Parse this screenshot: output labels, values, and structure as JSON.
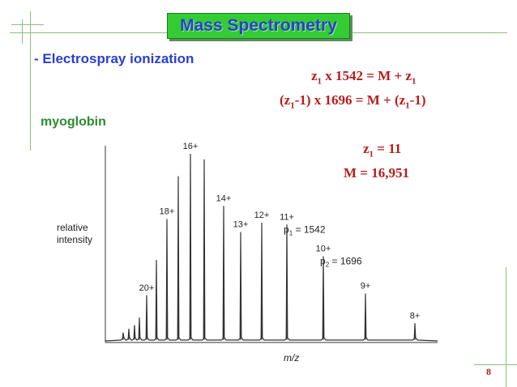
{
  "slide": {
    "title": "Mass Spectrometry",
    "subtitle": "- Electrospray ionization",
    "sample": "myoglobin",
    "page_number": "8"
  },
  "equations": {
    "eq1": {
      "z": "z",
      "sub1": "1",
      "mid": " x 1542 = M + z",
      "sub2": "1",
      "end": ""
    },
    "eq2": {
      "a": "(z",
      "sub1": "1",
      "mid": "-1) x 1696 = M + (z",
      "sub2": "1",
      "end": "-1)"
    },
    "eq3": {
      "z": "z",
      "sub1": "1",
      "end": " = 11"
    },
    "eq4": "M = 16,951"
  },
  "colors": {
    "title_bg": "#33cc33",
    "title_text": "#2a3fd0",
    "subtitle": "#2a3fd0",
    "sample": "#2e8b2e",
    "equation": "#b81c1c",
    "spectrum": "#333333"
  },
  "chart_data": {
    "type": "line",
    "xlabel": "m/z",
    "ylabel_line1": "relative",
    "ylabel_line2": "intensity",
    "peaks": [
      {
        "label": "",
        "intensity": 0.04
      },
      {
        "label": "",
        "intensity": 0.06
      },
      {
        "label": "",
        "intensity": 0.08
      },
      {
        "label": "",
        "intensity": 0.12
      },
      {
        "label": "20+",
        "intensity": 0.24
      },
      {
        "label": "",
        "intensity": 0.43
      },
      {
        "label": "18+",
        "intensity": 0.65
      },
      {
        "label": "",
        "intensity": 0.88
      },
      {
        "label": "16+",
        "intensity": 1.0
      },
      {
        "label": "",
        "intensity": 0.97
      },
      {
        "label": "14+",
        "intensity": 0.72
      },
      {
        "label": "13+",
        "intensity": 0.58
      },
      {
        "label": "12+",
        "intensity": 0.63
      },
      {
        "label": "11+",
        "intensity": 0.62
      },
      {
        "label": "10+",
        "intensity": 0.45
      },
      {
        "label": "9+",
        "intensity": 0.25
      },
      {
        "label": "8+",
        "intensity": 0.09
      }
    ],
    "annotations": [
      {
        "text": "p",
        "sub": "1",
        "value": " = 1542",
        "peak": "11+"
      },
      {
        "text": "p",
        "sub": "2",
        "value": " = 1696",
        "peak": "10+"
      }
    ]
  }
}
